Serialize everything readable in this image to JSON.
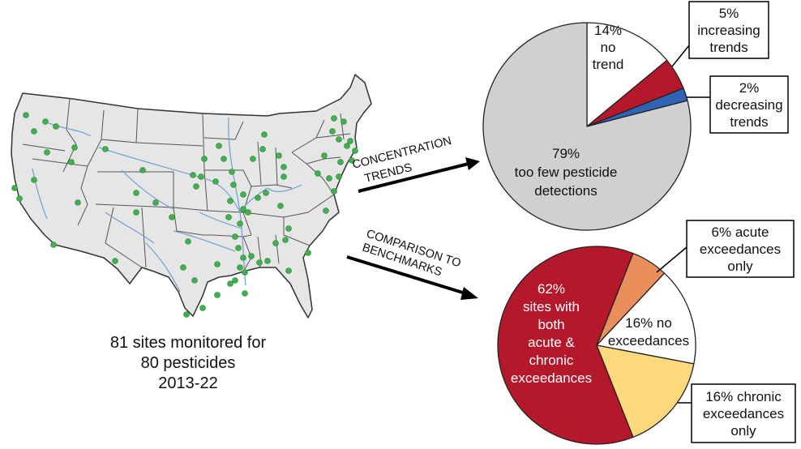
{
  "caption": {
    "line1": "81 sites monitored for",
    "line2": "80 pesticides",
    "line3": "2013-22"
  },
  "arrows": {
    "trends": {
      "line1": "CONCENTRATION",
      "line2": "TRENDS"
    },
    "benchmarks": {
      "line1": "COMPARISON TO",
      "line2": "BENCHMARKS"
    }
  },
  "colors": {
    "map_fill": "#e6e6e6",
    "state_border": "#555555",
    "river": "#6f9fd0",
    "site": "#3fb24f",
    "no_trend": "#ffffff",
    "increasing": "#b5182b",
    "decreasing": "#2e64b3",
    "too_few": "#d0d0d0",
    "both": "#b5182b",
    "acute": "#ea8f5b",
    "no_exceed": "#ffffff",
    "chronic": "#fcd97c"
  },
  "chart_data": [
    {
      "type": "pie",
      "title": "",
      "slices": [
        {
          "label": "14% no trend",
          "value": 14,
          "color": "#ffffff"
        },
        {
          "label": "5% increasing trends",
          "value": 5,
          "color": "#b5182b"
        },
        {
          "label": "2% decreasing trends",
          "value": 2,
          "color": "#2e64b3"
        },
        {
          "label": "79% too few pesticide detections",
          "value": 79,
          "color": "#d0d0d0"
        }
      ],
      "labels": {
        "no_trend": [
          "14%",
          "no",
          "trend"
        ],
        "increasing": [
          "5%",
          "increasing",
          "trends"
        ],
        "decreasing": [
          "2%",
          "decreasing",
          "trends"
        ],
        "too_few": [
          "79%",
          "too few pesticide",
          "detections"
        ]
      }
    },
    {
      "type": "pie",
      "title": "",
      "slices": [
        {
          "label": "6% acute exceedances only",
          "value": 6,
          "color": "#ea8f5b"
        },
        {
          "label": "16% no exceedances",
          "value": 16,
          "color": "#ffffff"
        },
        {
          "label": "16% chronic exceedances only",
          "value": 16,
          "color": "#fcd97c"
        },
        {
          "label": "62% sites with both acute & chronic exceedances",
          "value": 62,
          "color": "#b5182b"
        }
      ],
      "labels": {
        "acute": [
          "6% acute",
          "exceedances",
          "only"
        ],
        "no_exceed": [
          "16% no",
          "exceedances"
        ],
        "chronic": [
          "16% chronic",
          "exceedances",
          "only"
        ],
        "both": [
          "62%",
          "sites with",
          "both",
          "acute &",
          "chronic",
          "exceedances"
        ]
      }
    }
  ]
}
